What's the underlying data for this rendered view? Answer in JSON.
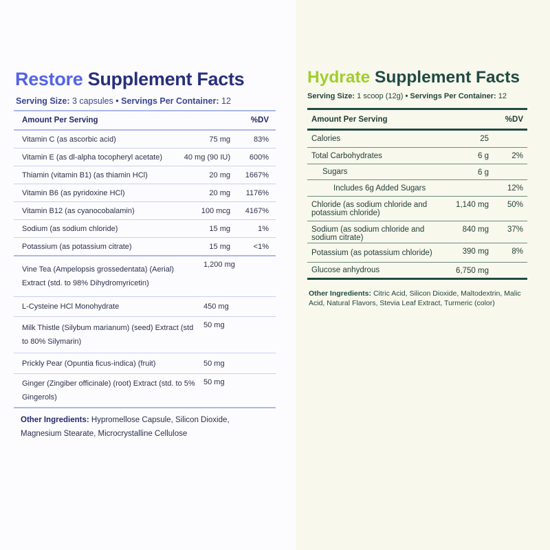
{
  "restore": {
    "brand": "Restore",
    "title_rest": "Supplement Facts",
    "serving_size_label": "Serving Size:",
    "serving_size": "3 capsules",
    "sep": "•",
    "servings_label": "Servings Per Container:",
    "servings": "12",
    "header": {
      "amount": "Amount Per Serving",
      "dv": "%DV"
    },
    "nutrients": [
      {
        "name": "Vitamin C (as ascorbic acid)",
        "amount": "75 mg",
        "dv": "83%"
      },
      {
        "name": "Vitamin E (as dl-alpha tocopheryl acetate)",
        "amount": "40 mg (90 IU)",
        "dv": "600%"
      },
      {
        "name": "Thiamin (vitamin B1) (as thiamin HCl)",
        "amount": "20 mg",
        "dv": "1667%"
      },
      {
        "name": "Vitamin B6 (as pyridoxine HCl)",
        "amount": "20 mg",
        "dv": "1176%"
      },
      {
        "name": "Vitamin B12 (as cyanocobalamin)",
        "amount": "100 mcg",
        "dv": "4167%"
      },
      {
        "name": "Sodium (as sodium chloride)",
        "amount": "15 mg",
        "dv": "1%"
      },
      {
        "name": "Potassium (as potassium citrate)",
        "amount": "15 mg",
        "dv": "<1%"
      }
    ],
    "botanicals": [
      {
        "name": "Vine Tea (Ampelopsis grossedentata) (Aerial) Extract (std. to 98% Dihydromyricetin)",
        "amount": "1,200 mg"
      },
      {
        "name": "L-Cysteine HCl Monohydrate",
        "amount": "450 mg"
      },
      {
        "name": "Milk Thistle (Silybum marianum) (seed) Extract (std to 80% Silymarin)",
        "amount": "50 mg"
      },
      {
        "name": "Prickly Pear (Opuntia ficus-indica) (fruit)",
        "amount": "50 mg"
      },
      {
        "name": "Ginger (Zingiber officinale) (root) Extract (std. to 5% Gingerols)",
        "amount": "50 mg"
      }
    ],
    "other_label": "Other Ingredients:",
    "other": "Hypromellose Capsule, Silicon Dioxide, Magnesium Stearate, Microcrystalline Cellulose"
  },
  "hydrate": {
    "brand": "Hydrate",
    "title_rest": "Supplement Facts",
    "serving_size_label": "Serving Size:",
    "serving_size": "1 scoop (12g)",
    "sep": "•",
    "servings_label": "Servings Per Container:",
    "servings": "12",
    "header": {
      "amount": "Amount Per Serving",
      "dv": "%DV"
    },
    "nutrients": [
      {
        "name": "Calories",
        "amount": "25",
        "dv": ""
      },
      {
        "name": "Total Carbohydrates",
        "amount": "6 g",
        "dv": "2%"
      },
      {
        "name": "Sugars",
        "amount": "6 g",
        "dv": ""
      },
      {
        "name": "Includes 6g Added Sugars",
        "amount": "",
        "dv": "12%"
      },
      {
        "name": "Chloride (as sodium chloride and potassium chloride)",
        "amount": "1,140 mg",
        "dv": "50%"
      },
      {
        "name": "Sodium (as sodium chloride and sodium citrate)",
        "amount": "840 mg",
        "dv": "37%"
      },
      {
        "name": "Potassium (as potassium chloride)",
        "amount": "390 mg",
        "dv": "8%"
      },
      {
        "name": "Glucose anhydrous",
        "amount": "6,750 mg",
        "dv": ""
      }
    ],
    "other_label": "Other Ingredients:",
    "other": "Citric Acid, Silicon Dioxide, Maltodextrin, Malic Acid, Natural Flavors, Stevia Leaf Extract, Turmeric (color)"
  }
}
